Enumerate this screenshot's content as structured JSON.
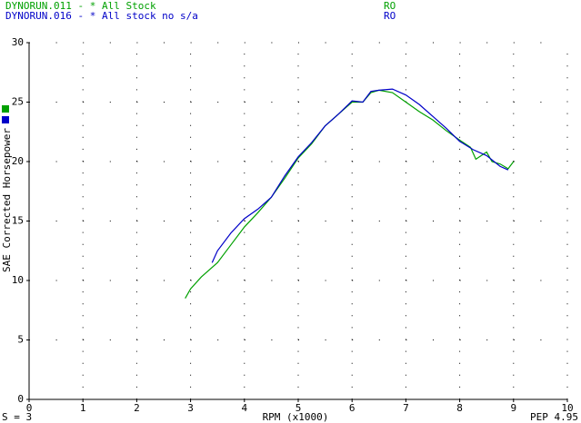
{
  "chart_data": {
    "type": "line",
    "x_label": "RPM (x1000)",
    "y_label": "SAE Corrected Horsepower",
    "footer_left": "S = 3",
    "footer_right": "PEP 4.95",
    "xlim": [
      0,
      10
    ],
    "ylim": [
      0,
      30
    ],
    "xticks": [
      0,
      1,
      2,
      3,
      4,
      5,
      6,
      7,
      8,
      9,
      10
    ],
    "yticks": [
      0,
      5,
      10,
      15,
      20,
      25,
      30
    ],
    "grid": true,
    "series": [
      {
        "name": "DYNORUN.011 - * All Stock",
        "tag": "RO",
        "color": "#00a000",
        "x": [
          2.9,
          3.0,
          3.2,
          3.5,
          3.75,
          4.0,
          4.25,
          4.5,
          4.75,
          5.0,
          5.25,
          5.5,
          5.75,
          6.0,
          6.2,
          6.35,
          6.5,
          6.75,
          7.0,
          7.25,
          7.5,
          7.75,
          8.0,
          8.2,
          8.3,
          8.5,
          8.6,
          8.75,
          8.9,
          9.0
        ],
        "values": [
          8.5,
          9.3,
          10.3,
          11.5,
          13.0,
          14.5,
          15.7,
          17.0,
          18.6,
          20.3,
          21.5,
          23.0,
          24.0,
          25.0,
          25.0,
          25.8,
          26.0,
          25.8,
          25.0,
          24.2,
          23.5,
          22.6,
          21.8,
          21.2,
          20.2,
          20.8,
          20.0,
          19.8,
          19.4,
          20.0
        ]
      },
      {
        "name": "DYNORUN.016 - * All stock no s/a",
        "tag": "RO",
        "color": "#0000c8",
        "x": [
          3.4,
          3.5,
          3.75,
          4.0,
          4.25,
          4.5,
          4.75,
          5.0,
          5.25,
          5.5,
          5.75,
          6.0,
          6.2,
          6.35,
          6.5,
          6.75,
          7.0,
          7.25,
          7.5,
          7.75,
          8.0,
          8.25,
          8.5,
          8.75,
          8.9
        ],
        "values": [
          11.5,
          12.5,
          14.0,
          15.2,
          16.0,
          17.0,
          18.8,
          20.4,
          21.6,
          23.0,
          24.0,
          25.1,
          25.0,
          25.9,
          26.0,
          26.1,
          25.6,
          24.8,
          23.8,
          22.8,
          21.7,
          21.0,
          20.5,
          19.6,
          19.3
        ]
      }
    ]
  }
}
